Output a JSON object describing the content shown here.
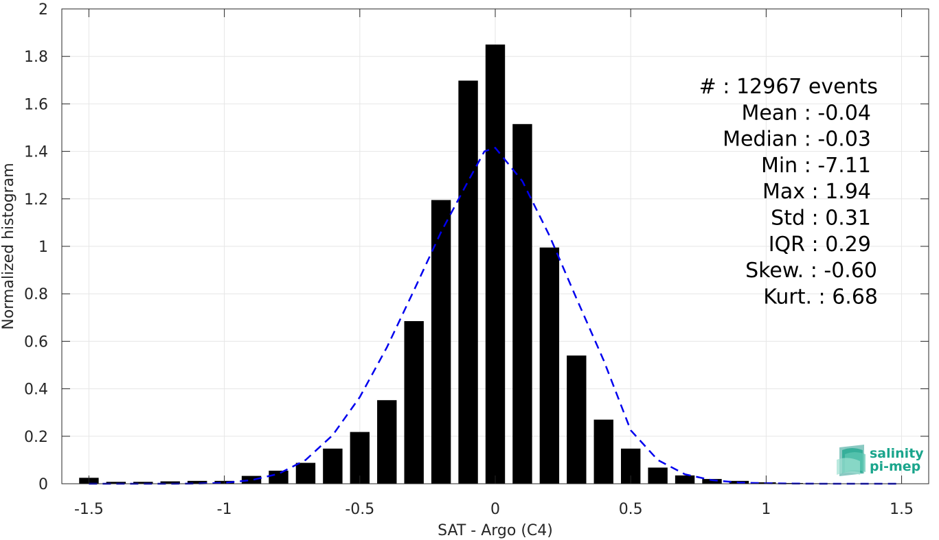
{
  "chart_data": {
    "type": "bar",
    "xlabel": "SAT - Argo (C4)",
    "ylabel": "Normalized histogram",
    "xlim": [
      -1.6,
      1.6
    ],
    "ylim": [
      0,
      2
    ],
    "x_ticks": [
      "-1.5",
      "-1",
      "-0.5",
      "0",
      "0.5",
      "1",
      "1.5"
    ],
    "x_tick_values": [
      -1.5,
      -1,
      -0.5,
      0,
      0.5,
      1,
      1.5
    ],
    "y_ticks": [
      "0",
      "0.2",
      "0.4",
      "0.6",
      "0.8",
      "1",
      "1.2",
      "1.4",
      "1.6",
      "1.8",
      "2"
    ],
    "y_tick_values": [
      0,
      0.2,
      0.4,
      0.6,
      0.8,
      1.0,
      1.2,
      1.4,
      1.6,
      1.8,
      2.0
    ],
    "grid": true,
    "bar_color": "#000000",
    "series": [
      {
        "values": [
          [
            -1.5,
            0.025
          ],
          [
            -1.4,
            0.008
          ],
          [
            -1.3,
            0.008
          ],
          [
            -1.2,
            0.01
          ],
          [
            -1.1,
            0.012
          ],
          [
            -1.0,
            0.012
          ],
          [
            -0.9,
            0.033
          ],
          [
            -0.8,
            0.055
          ],
          [
            -0.7,
            0.088
          ],
          [
            -0.6,
            0.148
          ],
          [
            -0.5,
            0.218
          ],
          [
            -0.4,
            0.352
          ],
          [
            -0.3,
            0.685
          ],
          [
            -0.2,
            1.195
          ],
          [
            -0.1,
            1.698
          ],
          [
            0.0,
            1.85
          ],
          [
            0.1,
            1.515
          ],
          [
            0.2,
            0.995
          ],
          [
            0.3,
            0.54
          ],
          [
            0.4,
            0.27
          ],
          [
            0.5,
            0.148
          ],
          [
            0.6,
            0.068
          ],
          [
            0.7,
            0.035
          ],
          [
            0.8,
            0.02
          ],
          [
            0.9,
            0.012
          ],
          [
            1.0,
            0.006
          ],
          [
            1.1,
            0.003
          ],
          [
            1.2,
            0.002
          ],
          [
            1.3,
            0.001
          ],
          [
            1.4,
            0.001
          ],
          [
            1.5,
            0.001
          ]
        ]
      }
    ],
    "fit_curve": {
      "style": "dashed",
      "color": "#0000ee",
      "points": [
        [
          -1.5,
          0.0
        ],
        [
          -1.4,
          0.0
        ],
        [
          -1.3,
          0.0
        ],
        [
          -1.2,
          0.0
        ],
        [
          -1.1,
          0.001
        ],
        [
          -1.0,
          0.004
        ],
        [
          -0.9,
          0.015
        ],
        [
          -0.8,
          0.042
        ],
        [
          -0.7,
          0.1
        ],
        [
          -0.6,
          0.205
        ],
        [
          -0.5,
          0.365
        ],
        [
          -0.4,
          0.575
        ],
        [
          -0.3,
          0.815
        ],
        [
          -0.2,
          1.06
        ],
        [
          -0.1,
          1.275
        ],
        [
          -0.04,
          1.4
        ],
        [
          0.0,
          1.415
        ],
        [
          0.1,
          1.275
        ],
        [
          0.2,
          1.045
        ],
        [
          0.3,
          0.78
        ],
        [
          0.4,
          0.52
        ],
        [
          0.5,
          0.225
        ],
        [
          0.6,
          0.1
        ],
        [
          0.7,
          0.04
        ],
        [
          0.8,
          0.015
        ],
        [
          0.9,
          0.005
        ],
        [
          1.0,
          0.002
        ],
        [
          1.1,
          0.001
        ],
        [
          1.2,
          0.0
        ],
        [
          1.3,
          0.0
        ],
        [
          1.4,
          0.0
        ],
        [
          1.5,
          0.0
        ]
      ]
    },
    "stats": [
      "#  : 12967 events",
      "Mean : -0.04",
      "Median : -0.03",
      "Min : -7.11",
      "Max : 1.94",
      "Std : 0.31",
      "IQR : 0.29",
      "Skew. : -0.60",
      "Kurt. : 6.68"
    ]
  },
  "logo": {
    "line1": "salinity",
    "line2": "pi-mep",
    "color": "#1aa58c",
    "icon": "salinity-wave-icon"
  }
}
